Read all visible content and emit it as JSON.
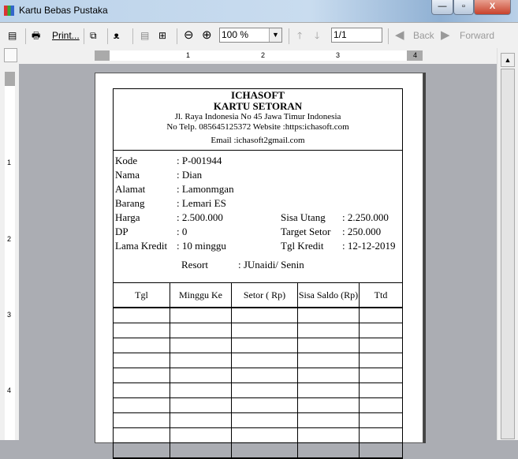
{
  "window": {
    "title": "Kartu Bebas Pustaka",
    "minimize": "—",
    "maximize": "▫",
    "close": "X"
  },
  "toolbar": {
    "print": "Print...",
    "zoom": "100 %",
    "page": "1/1",
    "back": "Back",
    "forward": "Forward"
  },
  "ruler": {
    "marks": [
      "1",
      "2",
      "3",
      "4"
    ]
  },
  "card": {
    "company": "ICHASOFT",
    "title": "KARTU SETORAN",
    "address": "Jl. Raya Indonesia No 45 Jawa Timur Indonesia",
    "contact": "No Telp. 085645125372 Website :https:ichasoft.com",
    "email": "Email :ichasoft2gmail.com",
    "fields": [
      {
        "label": "Kode",
        "value": ": P-001944"
      },
      {
        "label": "Nama",
        "value": ": Dian"
      },
      {
        "label": "Alamat",
        "value": ": Lamonmgan"
      },
      {
        "label": "Barang",
        "value": ": Lemari ES"
      },
      {
        "label": "Harga",
        "value": ": 2.500.000"
      },
      {
        "label": "DP",
        "value": ": 0"
      },
      {
        "label": "Lama Kredit",
        "value": ": 10 minggu"
      }
    ],
    "right_fields": [
      {
        "label": "Sisa Utang",
        "value": ": 2.250.000"
      },
      {
        "label": "Target Setor",
        "value": ": 250.000"
      },
      {
        "label": "Tgl Kredit",
        "value": ": 12-12-2019"
      }
    ],
    "resort": {
      "label": "Resort",
      "value": ": JUnaidi/ Senin"
    },
    "columns": [
      "Tgl",
      "Minggu Ke",
      "Setor ( Rp)",
      "Sisa Saldo (Rp)",
      "Ttd"
    ]
  }
}
